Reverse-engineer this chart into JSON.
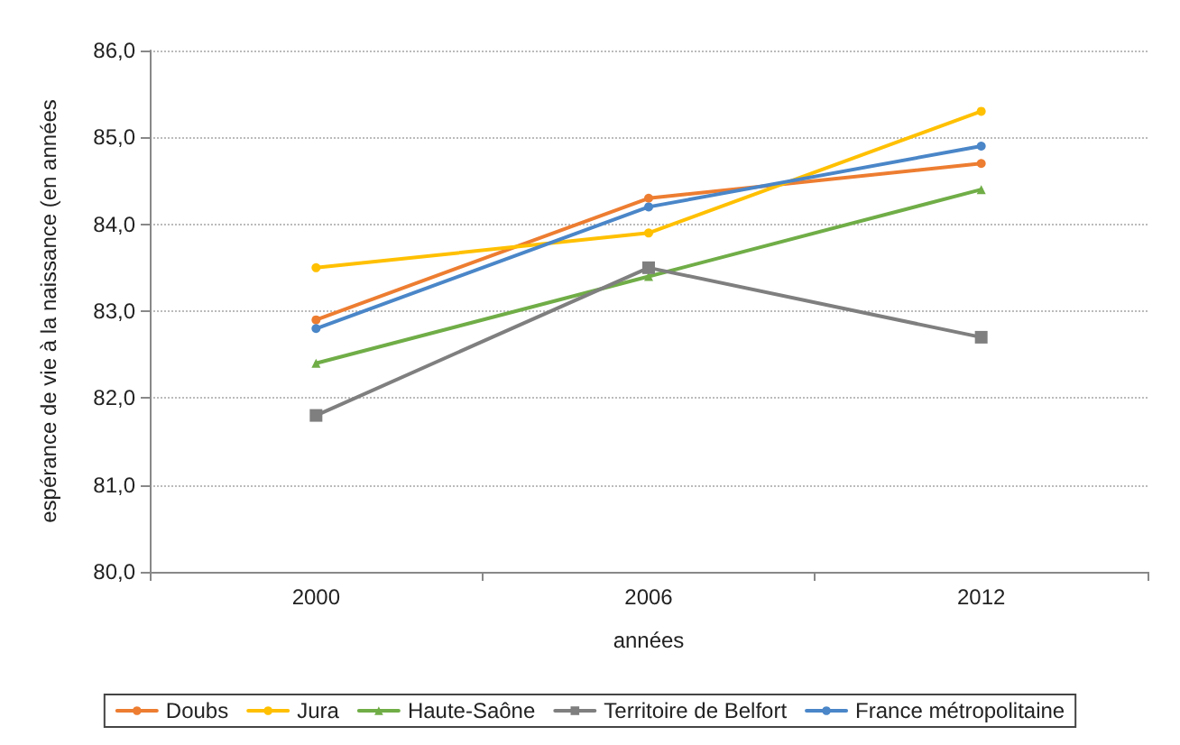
{
  "chart_data": {
    "type": "line",
    "xlabel": "années",
    "ylabel": "espérance de vie à la naissance (en années",
    "categories": [
      "2000",
      "2006",
      "2012"
    ],
    "ylim": [
      80,
      86
    ],
    "yticks": [
      {
        "value": 80,
        "label": "80,0"
      },
      {
        "value": 81,
        "label": "81,0"
      },
      {
        "value": 82,
        "label": "82,0"
      },
      {
        "value": 83,
        "label": "83,0"
      },
      {
        "value": 84,
        "label": "84,0"
      },
      {
        "value": 85,
        "label": "85,0"
      },
      {
        "value": 86,
        "label": "86,0"
      }
    ],
    "grid": "y",
    "legend": "bottom",
    "line_style": "solid",
    "series": [
      {
        "name": "Doubs",
        "color": "#ed7d31",
        "marker": "circle",
        "values": [
          82.9,
          84.3,
          84.7
        ]
      },
      {
        "name": "Jura",
        "color": "#ffc000",
        "marker": "circle",
        "values": [
          83.5,
          83.9,
          85.3
        ]
      },
      {
        "name": "Haute-Saône",
        "color": "#70ad47",
        "marker": "triangle",
        "values": [
          82.4,
          83.4,
          84.4
        ]
      },
      {
        "name": "Territoire de Belfort",
        "color": "#7f7f7f",
        "marker": "square",
        "values": [
          81.8,
          83.5,
          82.7
        ]
      },
      {
        "name": "France métropolitaine",
        "color": "#4a86c8",
        "marker": "circle",
        "values": [
          82.8,
          84.2,
          84.9
        ]
      }
    ]
  }
}
